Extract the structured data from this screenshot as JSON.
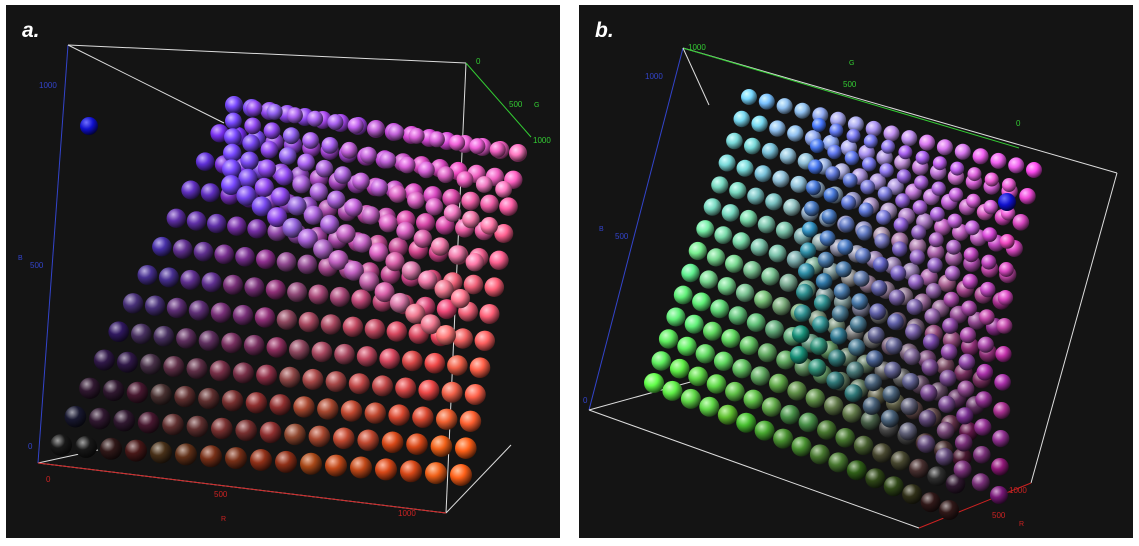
{
  "panels": [
    {
      "label": "a.",
      "r_axis": {
        "title": "R",
        "ticks": [
          "0",
          "500",
          "1000"
        ]
      },
      "g_axis": {
        "title": "G",
        "ticks": [
          "0",
          "500",
          "1000"
        ]
      },
      "b_axis": {
        "title": "B",
        "ticks": [
          "0",
          "500",
          "1000"
        ]
      }
    },
    {
      "label": "b.",
      "r_axis": {
        "title": "R",
        "ticks": [
          "500",
          "1000"
        ]
      },
      "g_axis": {
        "title": "G",
        "ticks": [
          "1000",
          "500",
          "0"
        ]
      },
      "b_axis": {
        "title": "B",
        "ticks": [
          "0",
          "500",
          "1000"
        ]
      }
    }
  ],
  "colors": {
    "background": "#141414",
    "r_axis": "#cc2222",
    "g_axis": "#33cc33",
    "b_axis": "#3344cc",
    "box": "#dddddd"
  }
}
